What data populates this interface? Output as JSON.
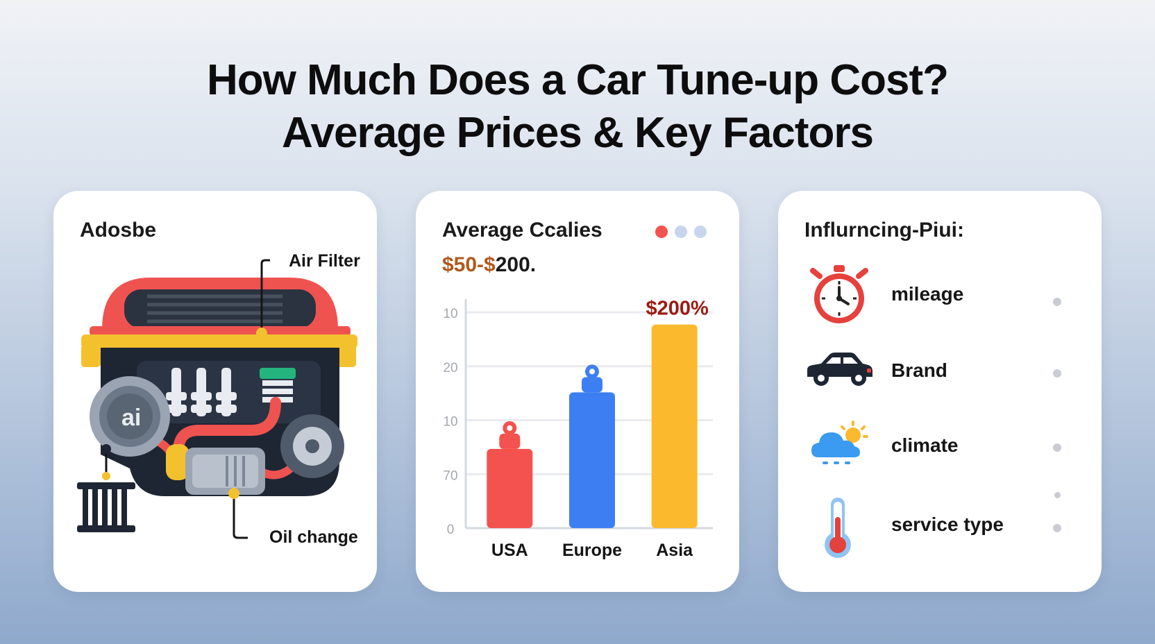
{
  "title_line1": "How Much Does a Car Tune-up Cost?",
  "title_line2": "Average Prices & Key Factors",
  "card1": {
    "title": "Adosbe",
    "callout_air": "Air Filter",
    "callout_oil": "Oil change"
  },
  "card2": {
    "title": "Average Ccalies",
    "range_part1": "$50-$",
    "range_part2": "200.",
    "chart_data": {
      "type": "bar",
      "categories": [
        "USA",
        "Europe",
        "Asia"
      ],
      "tick_labels": [
        "0",
        "70",
        "10",
        "20",
        "10"
      ],
      "colors": [
        "#f4524f",
        "#3d7ff2",
        "#fbb92e"
      ],
      "values": [
        1.4,
        2.4,
        3.6
      ],
      "bar_label": "$200%",
      "ylim": [
        0,
        4
      ],
      "grid": true
    }
  },
  "card3": {
    "title": "Influrncing-Piui:",
    "factors": [
      {
        "label": "mileage",
        "icon": "stopwatch-icon"
      },
      {
        "label": "Brand",
        "icon": "car-icon"
      },
      {
        "label": "climate",
        "icon": "cloud-sun-icon"
      },
      {
        "label": "service type",
        "icon": "thermometer-icon"
      }
    ]
  }
}
